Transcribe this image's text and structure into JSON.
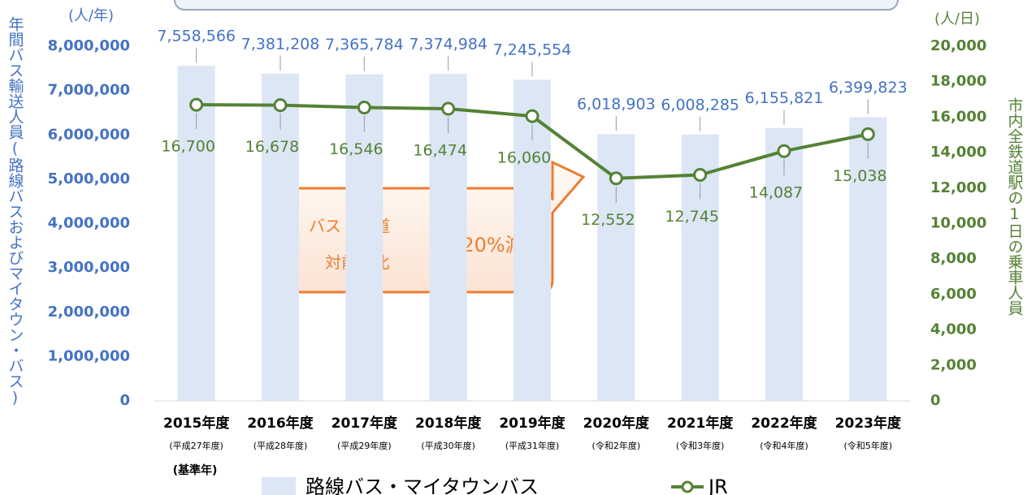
{
  "chart_data": {
    "type": "bar",
    "y_axis_label": "年間バス輸送人員(路線バスおよびマイタウン・バス)",
    "y_unit": "(人/年)",
    "y2_axis_label": "市内全鉄道駅の1日の乗車人員",
    "y2_unit": "(人/日)",
    "categories": [
      "2015年度",
      "2016年度",
      "2017年度",
      "2018年度",
      "2019年度",
      "2020年度",
      "2021年度",
      "2022年度",
      "2023年度"
    ],
    "category_notes": [
      "(平成27年度)",
      "(平成28年度)",
      "(平成29年度)",
      "(平成30年度)",
      "(平成31年度)",
      "(令和2年度)",
      "(令和3年度)",
      "(令和4年度)",
      "(令和5年度)"
    ],
    "base_year_note": "(基準年)",
    "series": [
      {
        "name": "路線バス・マイタウンバス",
        "type": "bar",
        "axis": "y",
        "color": "#dce6f5",
        "values": [
          7558566,
          7381208,
          7365784,
          7374984,
          7245554,
          6018903,
          6008285,
          6155821,
          6399823
        ],
        "value_labels": [
          "7,558,566",
          "7,381,208",
          "7,365,784",
          "7,374,984",
          "7,245,554",
          "6,018,903",
          "6,008,285",
          "6,155,821",
          "6,399,823"
        ]
      },
      {
        "name": "JR",
        "type": "line",
        "axis": "y2",
        "color": "#548235",
        "values": [
          16700,
          16678,
          16546,
          16474,
          16060,
          12552,
          12745,
          14087,
          15038
        ],
        "value_labels": [
          "16,700",
          "16,678",
          "16,546",
          "16,474",
          "16,060",
          "12,552",
          "12,745",
          "14,087",
          "15,038"
        ]
      }
    ],
    "ylim": [
      0,
      8000000
    ],
    "yticks": [
      0,
      {
        "value": 1000000,
        "label": "1,000,000"
      },
      {
        "value": 2000000,
        "label": "2,000,000"
      },
      {
        "value": 3000000,
        "label": "3,000,000"
      },
      {
        "value": 4000000,
        "label": "4,000,000"
      },
      {
        "value": 5000000,
        "label": "5,000,000"
      },
      {
        "value": 6000000,
        "label": "6,000,000"
      },
      {
        "value": 7000000,
        "label": "7,000,000"
      },
      {
        "value": 8000000,
        "label": "8,000,000"
      }
    ],
    "y2lim": [
      0,
      20000
    ],
    "y2ticks": [
      0,
      {
        "value": 2000,
        "label": "2,000"
      },
      {
        "value": 4000,
        "label": "4,000"
      },
      {
        "value": 6000,
        "label": "6,000"
      },
      {
        "value": 8000,
        "label": "8,000"
      },
      {
        "value": 10000,
        "label": "10,000"
      },
      {
        "value": 12000,
        "label": "12,000"
      },
      {
        "value": 14000,
        "label": "14,000"
      },
      {
        "value": 16000,
        "label": "16,000"
      },
      {
        "value": 18000,
        "label": "18,000"
      },
      {
        "value": 20000,
        "label": "20,000"
      }
    ],
    "grid": false,
    "annotation": {
      "lines": [
        "バス・鉄道",
        "対前年比"
      ],
      "highlight": "約20%減"
    }
  }
}
